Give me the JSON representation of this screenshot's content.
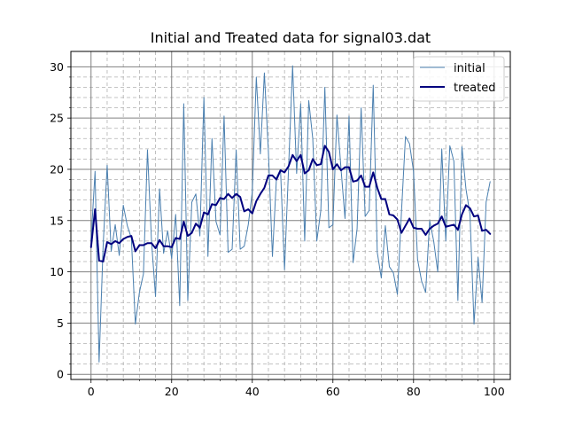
{
  "chart_data": {
    "type": "line",
    "title": "Initial and Treated data for signal03.dat",
    "xlabel": "",
    "ylabel": "",
    "xlim": [
      -5,
      104
    ],
    "ylim": [
      -0.5,
      31.5
    ],
    "x_ticks": [
      0,
      20,
      40,
      60,
      80,
      100
    ],
    "y_ticks": [
      0,
      5,
      10,
      15,
      20,
      25,
      30
    ],
    "grid": true,
    "minor_grid": true,
    "legend_position": "top-right",
    "x": [
      0,
      1,
      2,
      3,
      4,
      5,
      6,
      7,
      8,
      9,
      10,
      11,
      12,
      13,
      14,
      15,
      16,
      17,
      18,
      19,
      20,
      21,
      22,
      23,
      24,
      25,
      26,
      27,
      28,
      29,
      30,
      31,
      32,
      33,
      34,
      35,
      36,
      37,
      38,
      39,
      40,
      41,
      42,
      43,
      44,
      45,
      46,
      47,
      48,
      49,
      50,
      51,
      52,
      53,
      54,
      55,
      56,
      57,
      58,
      59,
      60,
      61,
      62,
      63,
      64,
      65,
      66,
      67,
      68,
      69,
      70,
      71,
      72,
      73,
      74,
      75,
      76,
      77,
      78,
      79,
      80,
      81,
      82,
      83,
      84,
      85,
      86,
      87,
      88,
      89,
      90,
      91,
      92,
      93,
      94,
      95,
      96,
      97,
      98,
      99
    ],
    "series": [
      {
        "name": "initial",
        "color": "#4a7faf",
        "line_width": 1,
        "values": [
          13.0,
          19.8,
          1.2,
          12.5,
          20.4,
          12.0,
          14.6,
          11.6,
          16.5,
          14.5,
          13.3,
          4.9,
          8.0,
          9.8,
          21.9,
          13.0,
          7.6,
          18.1,
          11.8,
          14.0,
          11.3,
          15.6,
          6.7,
          26.4,
          7.2,
          16.8,
          17.6,
          13.5,
          27.0,
          11.5,
          23.0,
          14.9,
          13.6,
          25.2,
          11.9,
          12.2,
          21.9,
          12.2,
          12.5,
          14.6,
          17.8,
          29.0,
          21.5,
          29.4,
          21.7,
          11.5,
          19.2,
          20.0,
          10.2,
          20.1,
          30.1,
          19.6,
          26.4,
          13.0,
          26.7,
          23.0,
          13.0,
          16.0,
          28.0,
          14.3,
          14.6,
          25.3,
          20.1,
          15.2,
          25.2,
          10.9,
          14.2,
          26.0,
          15.4,
          16.0,
          28.2,
          11.9,
          9.4,
          14.5,
          10.5,
          9.9,
          7.8,
          15.8,
          23.2,
          22.5,
          19.8,
          11.2,
          9.1,
          8.0,
          15.0,
          13.0,
          10.0,
          22.0,
          13.0,
          22.3,
          20.8,
          7.2,
          22.2,
          18.1,
          15.6,
          4.9,
          11.4,
          7.0,
          16.8,
          18.8
        ]
      },
      {
        "name": "treated",
        "color": "#00007f",
        "line_width": 2,
        "values": [
          12.4,
          16.1,
          11.1,
          11.0,
          12.9,
          12.7,
          13.0,
          12.8,
          13.2,
          13.4,
          13.5,
          12.0,
          12.6,
          12.6,
          12.8,
          12.8,
          12.3,
          13.1,
          12.5,
          12.5,
          12.4,
          13.3,
          13.2,
          14.9,
          13.5,
          13.8,
          14.7,
          14.3,
          15.8,
          15.6,
          16.6,
          16.5,
          17.2,
          17.1,
          17.6,
          17.2,
          17.6,
          17.3,
          15.9,
          16.1,
          15.7,
          16.9,
          17.6,
          18.2,
          19.4,
          19.4,
          19.0,
          19.9,
          19.7,
          20.3,
          21.4,
          20.8,
          21.4,
          19.6,
          19.9,
          21.0,
          20.4,
          20.5,
          22.3,
          21.7,
          20.0,
          20.5,
          19.9,
          20.2,
          20.2,
          18.8,
          18.9,
          19.4,
          18.3,
          18.3,
          19.7,
          18.2,
          17.1,
          17.1,
          15.6,
          15.5,
          15.1,
          13.8,
          14.5,
          15.2,
          14.3,
          14.2,
          14.2,
          13.6,
          14.2,
          14.5,
          14.7,
          15.4,
          14.4,
          14.5,
          14.6,
          14.1,
          15.6,
          16.5,
          16.2,
          15.4,
          15.5,
          14.0,
          14.1,
          13.7
        ]
      }
    ]
  }
}
